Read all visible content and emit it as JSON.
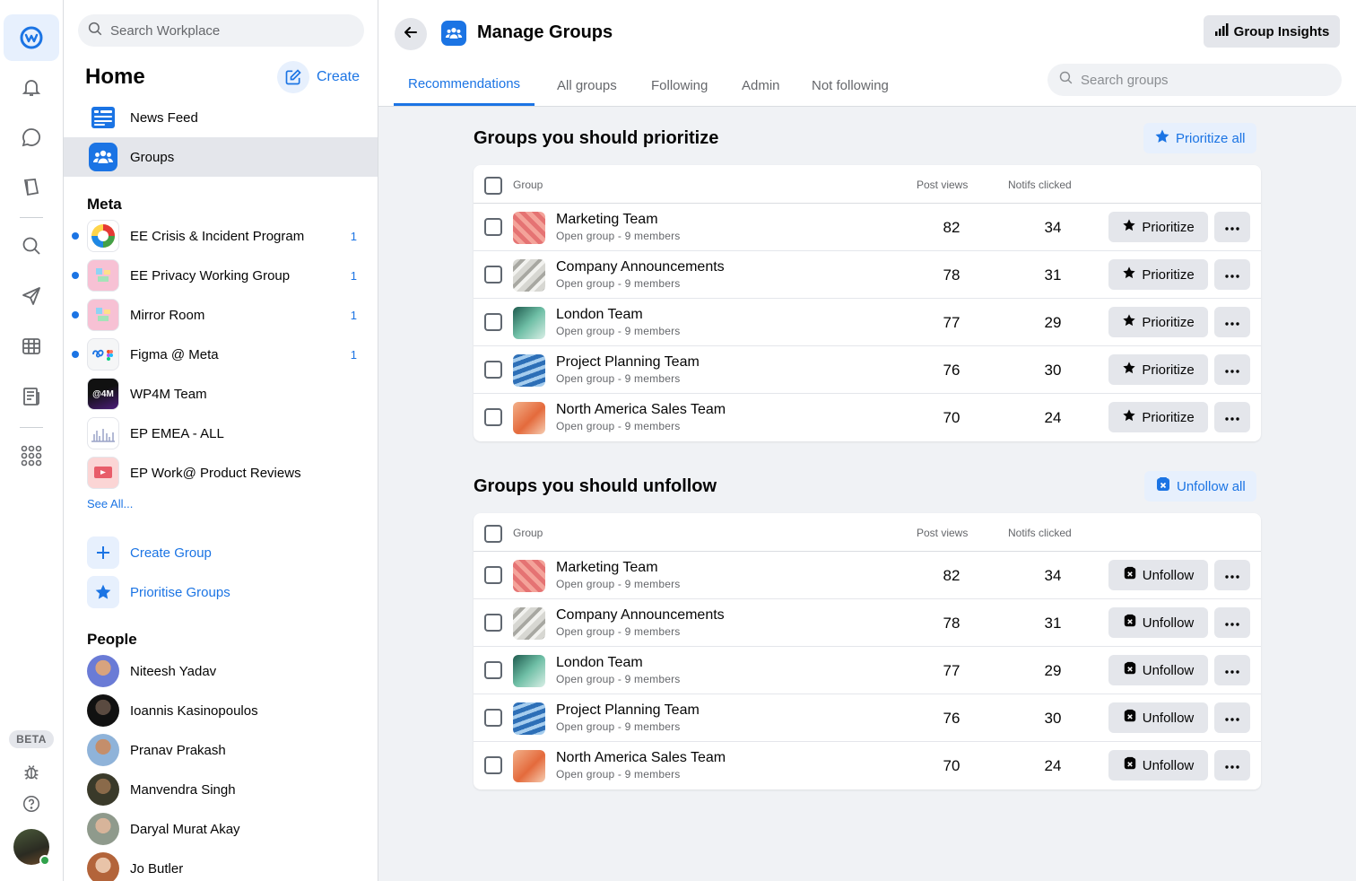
{
  "rail": {
    "icons": [
      "workplace-logo-icon",
      "bell-icon",
      "chat-icon",
      "book-icon",
      "search-icon",
      "send-icon",
      "table-icon",
      "newspaper-icon",
      "apps-grid-icon"
    ],
    "beta_label": "BETA"
  },
  "sidebar": {
    "search_placeholder": "Search Workplace",
    "home_title": "Home",
    "create_label": "Create",
    "nav": [
      {
        "label": "News Feed"
      },
      {
        "label": "Groups"
      }
    ],
    "meta_title": "Meta",
    "groups": [
      {
        "label": "EE Crisis & Incident Program",
        "count": "1"
      },
      {
        "label": "EE Privacy Working Group",
        "count": "1"
      },
      {
        "label": "Mirror Room",
        "count": "1"
      },
      {
        "label": "Figma @ Meta",
        "count": "1"
      },
      {
        "label": "WP4M Team",
        "count": "",
        "thumb_text": "@4M"
      },
      {
        "label": "EP EMEA - ALL",
        "count": ""
      },
      {
        "label": "EP Work@ Product Reviews",
        "count": ""
      }
    ],
    "see_all": "See All...",
    "actions": [
      {
        "label": "Create Group"
      },
      {
        "label": "Prioritise Groups"
      }
    ],
    "people_title": "People",
    "people": [
      {
        "name": "Niteesh Yadav"
      },
      {
        "name": "Ioannis Kasinopoulos"
      },
      {
        "name": "Pranav Prakash"
      },
      {
        "name": "Manvendra Singh"
      },
      {
        "name": "Daryal Murat Akay"
      },
      {
        "name": "Jo Butler"
      }
    ]
  },
  "header": {
    "title": "Manage Groups",
    "insights_label": "Group Insights",
    "tabs": [
      "Recommendations",
      "All groups",
      "Following",
      "Admin",
      "Not following"
    ],
    "search_placeholder": "Search groups"
  },
  "prioritize": {
    "title": "Groups you should prioritize",
    "bulk_label": "Prioritize all",
    "col_group": "Group",
    "col_views": "Post views",
    "col_notifs": "Notifs clicked",
    "action_label": "Prioritize",
    "rows": [
      {
        "name": "Marketing Team",
        "meta": "Open group - 9 members",
        "views": "82",
        "notifs": "34"
      },
      {
        "name": "Company Announcements",
        "meta": "Open group - 9 members",
        "views": "78",
        "notifs": "31"
      },
      {
        "name": "London Team",
        "meta": "Open group - 9 members",
        "views": "77",
        "notifs": "29"
      },
      {
        "name": "Project Planning Team",
        "meta": "Open group - 9 members",
        "views": "76",
        "notifs": "30"
      },
      {
        "name": "North America Sales Team",
        "meta": "Open group - 9 members",
        "views": "70",
        "notifs": "24"
      }
    ]
  },
  "unfollow": {
    "title": "Groups you should unfollow",
    "bulk_label": "Unfollow all",
    "col_group": "Group",
    "col_views": "Post views",
    "col_notifs": "Notifs clicked",
    "action_label": "Unfollow",
    "rows": [
      {
        "name": "Marketing Team",
        "meta": "Open group - 9 members",
        "views": "82",
        "notifs": "34"
      },
      {
        "name": "Company Announcements",
        "meta": "Open group - 9 members",
        "views": "78",
        "notifs": "31"
      },
      {
        "name": "London Team",
        "meta": "Open group - 9 members",
        "views": "77",
        "notifs": "29"
      },
      {
        "name": "Project Planning Team",
        "meta": "Open group - 9 members",
        "views": "76",
        "notifs": "30"
      },
      {
        "name": "North America Sales Team",
        "meta": "Open group - 9 members",
        "views": "70",
        "notifs": "24"
      }
    ]
  },
  "colors": {
    "accent": "#1b74e4",
    "accent_soft": "#e7f0fd",
    "button_gray": "#e4e6eb",
    "online": "#31a24c"
  }
}
